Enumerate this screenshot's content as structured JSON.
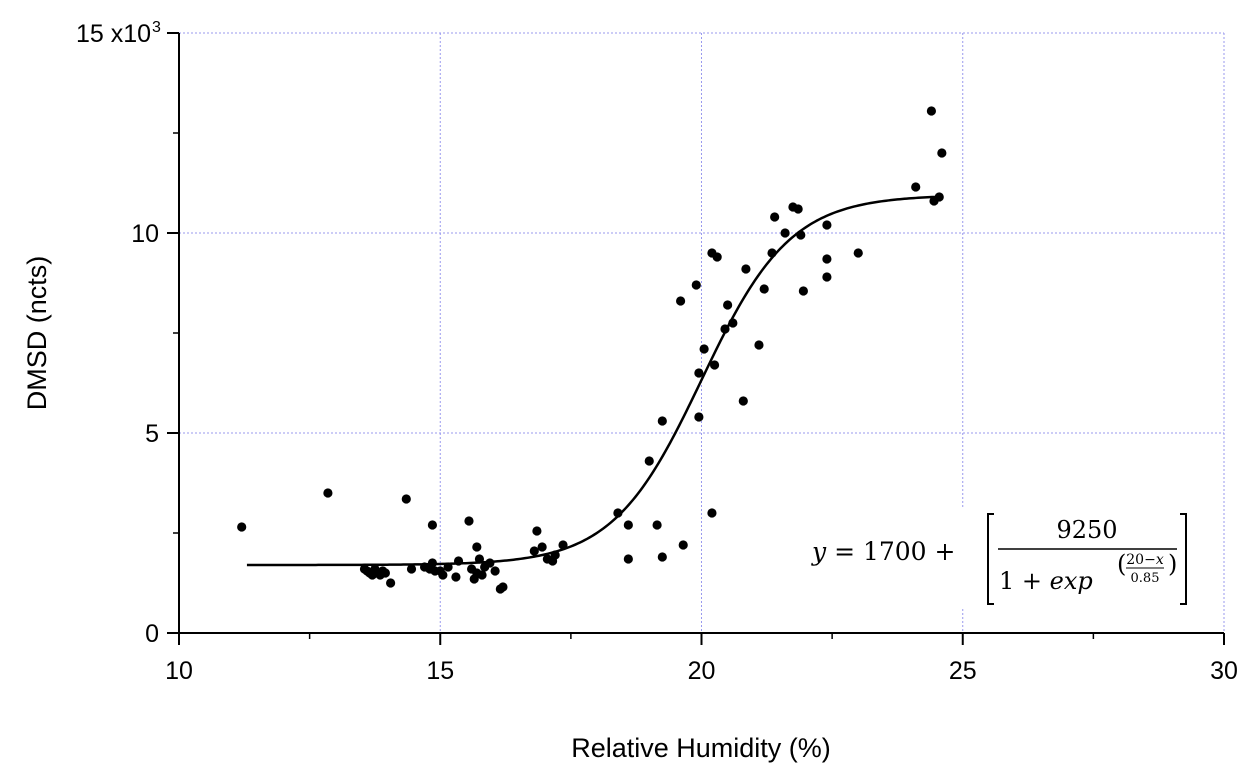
{
  "chart_data": {
    "type": "scatter",
    "title": "",
    "xlabel": "Relative Humidity (%)",
    "ylabel": "DMSD (ncts)",
    "xlim": [
      10,
      30
    ],
    "ylim": [
      0,
      15000
    ],
    "x_ticks": [
      10,
      15,
      20,
      25,
      30
    ],
    "y_ticks": [
      0,
      5000,
      10000,
      15000
    ],
    "x_tick_labels": [
      "10",
      "15",
      "20",
      "25",
      "30"
    ],
    "y_tick_labels": [
      "0",
      "5",
      "10",
      "15 x10"
    ],
    "y_exponent": "3",
    "grid": true,
    "grid_color": "#9999ee",
    "series": [
      {
        "type": "scatter",
        "color": "#000000",
        "points": [
          [
            11.2,
            2650
          ],
          [
            12.85,
            3500
          ],
          [
            14.35,
            3350
          ],
          [
            14.85,
            2700
          ],
          [
            15.55,
            2800
          ],
          [
            13.55,
            1600
          ],
          [
            13.6,
            1550
          ],
          [
            13.65,
            1500
          ],
          [
            13.7,
            1450
          ],
          [
            13.75,
            1600
          ],
          [
            13.8,
            1500
          ],
          [
            13.85,
            1450
          ],
          [
            13.9,
            1550
          ],
          [
            13.95,
            1500
          ],
          [
            14.05,
            1250
          ],
          [
            14.45,
            1600
          ],
          [
            14.7,
            1650
          ],
          [
            14.8,
            1600
          ],
          [
            14.85,
            1750
          ],
          [
            14.9,
            1550
          ],
          [
            15.0,
            1550
          ],
          [
            15.05,
            1450
          ],
          [
            15.15,
            1650
          ],
          [
            15.3,
            1400
          ],
          [
            15.35,
            1800
          ],
          [
            15.6,
            1600
          ],
          [
            15.65,
            1350
          ],
          [
            15.7,
            1500
          ],
          [
            15.7,
            2150
          ],
          [
            15.75,
            1850
          ],
          [
            15.8,
            1450
          ],
          [
            15.85,
            1650
          ],
          [
            15.95,
            1750
          ],
          [
            16.05,
            1550
          ],
          [
            16.15,
            1100
          ],
          [
            16.2,
            1150
          ],
          [
            16.8,
            2050
          ],
          [
            16.85,
            2550
          ],
          [
            16.95,
            2150
          ],
          [
            17.05,
            1850
          ],
          [
            17.15,
            1800
          ],
          [
            17.2,
            1950
          ],
          [
            17.35,
            2200
          ],
          [
            18.4,
            3000
          ],
          [
            18.6,
            1850
          ],
          [
            18.6,
            2700
          ],
          [
            19.0,
            4300
          ],
          [
            19.15,
            2700
          ],
          [
            19.25,
            5300
          ],
          [
            19.25,
            1900
          ],
          [
            19.6,
            8300
          ],
          [
            19.65,
            2200
          ],
          [
            19.9,
            8700
          ],
          [
            19.95,
            5400
          ],
          [
            19.95,
            6500
          ],
          [
            20.05,
            7100
          ],
          [
            20.2,
            3000
          ],
          [
            20.2,
            9500
          ],
          [
            20.25,
            6700
          ],
          [
            20.3,
            9400
          ],
          [
            20.45,
            7600
          ],
          [
            20.5,
            8200
          ],
          [
            20.6,
            7750
          ],
          [
            20.8,
            5800
          ],
          [
            20.85,
            9100
          ],
          [
            21.1,
            7200
          ],
          [
            21.2,
            8600
          ],
          [
            21.35,
            9500
          ],
          [
            21.4,
            10400
          ],
          [
            21.6,
            10000
          ],
          [
            21.75,
            10650
          ],
          [
            21.85,
            10600
          ],
          [
            21.9,
            9950
          ],
          [
            21.95,
            8550
          ],
          [
            22.4,
            10200
          ],
          [
            22.4,
            9350
          ],
          [
            22.4,
            8900
          ],
          [
            23.0,
            9500
          ],
          [
            24.1,
            11150
          ],
          [
            24.4,
            13050
          ],
          [
            24.45,
            10800
          ],
          [
            24.55,
            10900
          ],
          [
            24.6,
            12000
          ]
        ]
      },
      {
        "type": "line",
        "color": "#000000",
        "function": "logistic",
        "base": 1700,
        "amplitude": 9250,
        "center": 20,
        "width": 0.85,
        "x_range": [
          11.3,
          24.5
        ]
      }
    ],
    "annotation": {
      "lhs": "y = 1700 +",
      "numerator": "9250",
      "denominator_prefix": "1 + exp",
      "exponent_numerator": "20−x",
      "exponent_denominator": "0.85"
    }
  }
}
